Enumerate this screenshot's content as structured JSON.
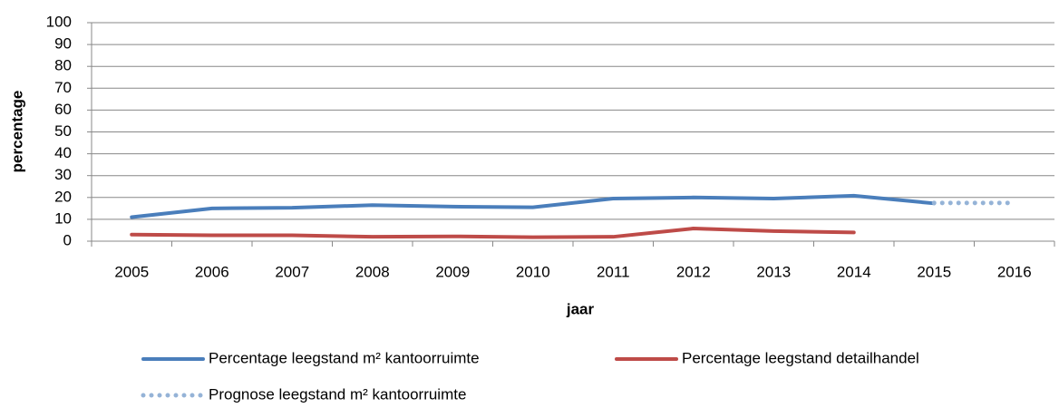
{
  "chart_data": {
    "type": "line",
    "x_label": "jaar",
    "y_label": "percentage",
    "categories": [
      "2005",
      "2006",
      "2007",
      "2008",
      "2009",
      "2010",
      "2011",
      "2012",
      "2013",
      "2014",
      "2015",
      "2016"
    ],
    "series": [
      {
        "name": "Percentage leegstand m² kantoorruimte",
        "color": "#4a7ebb",
        "style": "solid",
        "values": [
          11,
          15,
          15.3,
          16.5,
          15.8,
          15.5,
          19.5,
          20,
          19.5,
          20.8,
          17.3,
          null
        ]
      },
      {
        "name": "Percentage leegstand detailhandel",
        "color": "#be4b48",
        "style": "solid",
        "values": [
          3,
          2.7,
          2.7,
          2,
          2.2,
          1.8,
          2,
          5.8,
          4.6,
          4,
          null,
          null
        ]
      },
      {
        "name": "Prognose leegstand m² kantoorruimte",
        "color": "#95b3d7",
        "style": "dotted",
        "values": [
          null,
          null,
          null,
          null,
          null,
          null,
          null,
          null,
          null,
          null,
          17.5,
          17.5
        ]
      }
    ],
    "ylim": [
      0,
      100
    ],
    "yticks": [
      0,
      10,
      20,
      30,
      40,
      50,
      60,
      70,
      80,
      90,
      100
    ],
    "grid": true
  }
}
